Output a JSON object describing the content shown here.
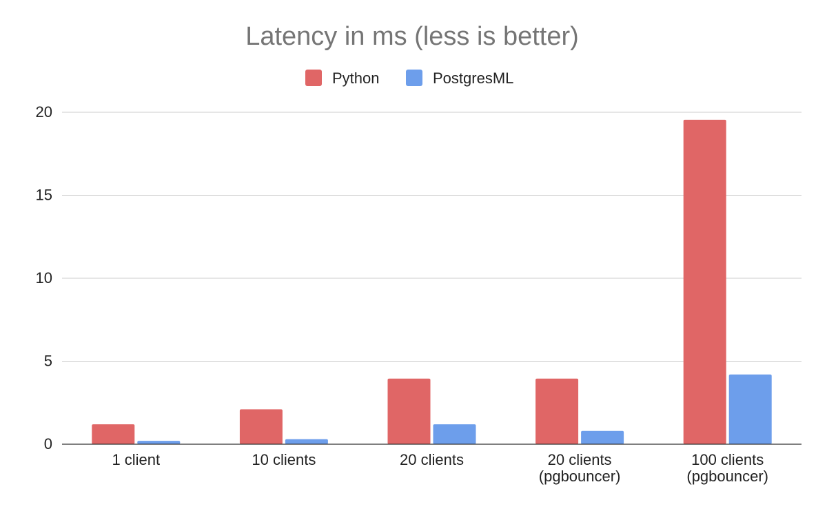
{
  "chart_data": {
    "type": "bar",
    "title": "Latency in ms (less is better)",
    "categories": [
      [
        "1 client"
      ],
      [
        "10 clients"
      ],
      [
        "20 clients"
      ],
      [
        "20 clients",
        "(pgbouncer)"
      ],
      [
        "100 clients",
        "(pgbouncer)"
      ]
    ],
    "series": [
      {
        "name": "Python",
        "color": "#e06666",
        "values": [
          1.2,
          2.1,
          3.95,
          3.95,
          19.55
        ]
      },
      {
        "name": "PostgresML",
        "color": "#6d9eeb",
        "values": [
          0.2,
          0.3,
          1.2,
          0.8,
          4.2
        ]
      }
    ],
    "ylim": [
      0,
      20
    ],
    "yticks": [
      0,
      5,
      10,
      15,
      20
    ],
    "grid": true,
    "legend_position": "top-center",
    "xlabel": "",
    "ylabel": ""
  }
}
